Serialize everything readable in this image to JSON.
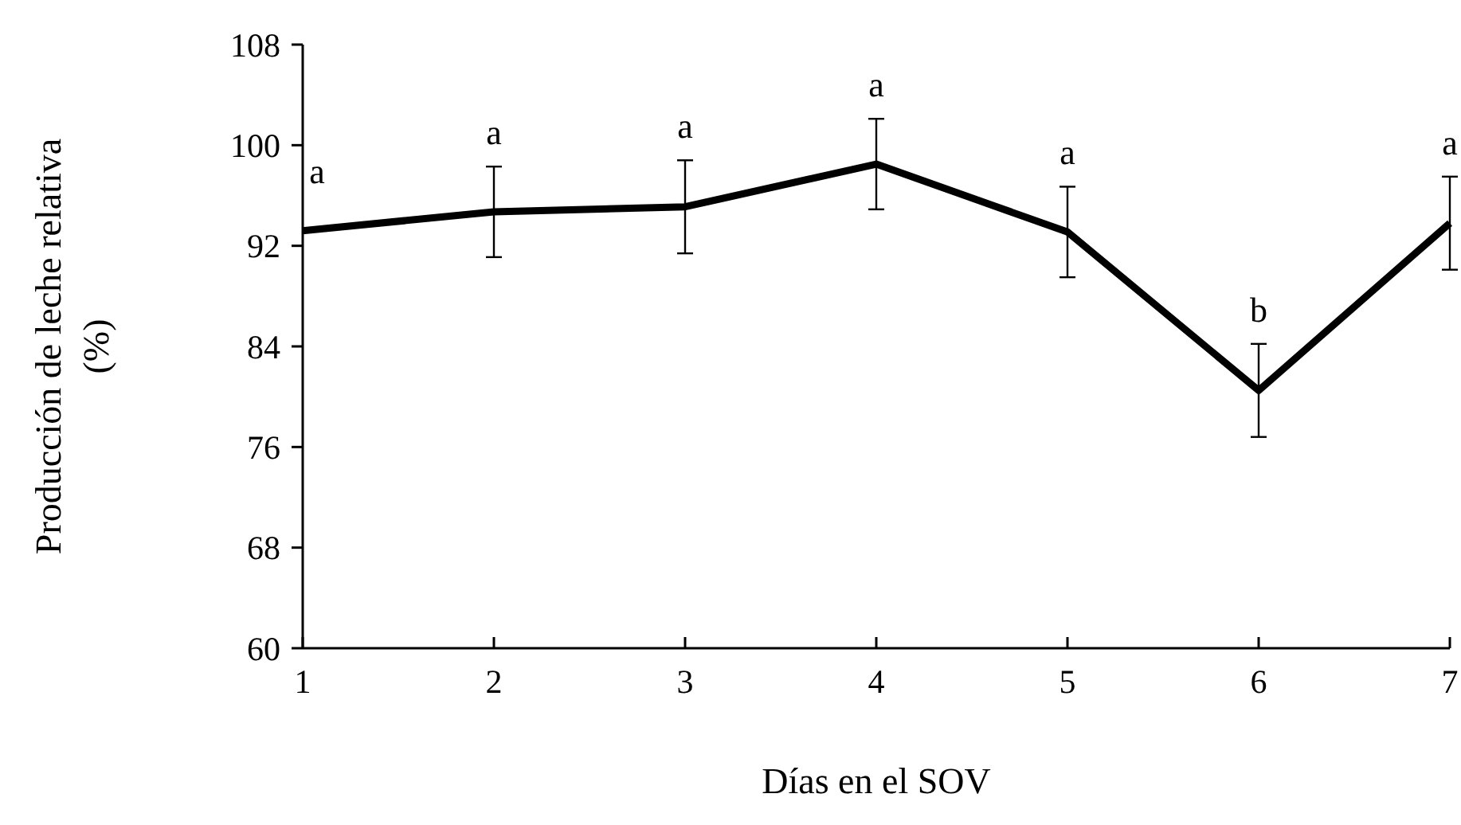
{
  "chart_data": {
    "type": "line",
    "xlabel": "Días en el SOV",
    "ylabel": "Producción de leche relativa (%)",
    "x": [
      1,
      2,
      3,
      4,
      5,
      6,
      7
    ],
    "series": [
      {
        "color": "#000000",
        "values": [
          93.2,
          94.7,
          95.1,
          98.5,
          93.1,
          80.5,
          93.8
        ],
        "errors": [
          null,
          3.6,
          3.7,
          3.6,
          3.6,
          3.7,
          3.7
        ]
      }
    ],
    "xlim": [
      1,
      7
    ],
    "xticks": [
      1,
      2,
      3,
      4,
      5,
      6,
      7
    ],
    "ylim": [
      60,
      108
    ],
    "yticks": [
      60,
      68,
      76,
      84,
      92,
      100,
      108
    ],
    "marker": "none",
    "line_style": "solid",
    "grid": false,
    "annotations": [
      {
        "text": "a",
        "x": 1,
        "y": 93.2
      },
      {
        "text": "a",
        "x": 2,
        "y": 94.7
      },
      {
        "text": "a",
        "x": 3,
        "y": 95.1
      },
      {
        "text": "a",
        "x": 4,
        "y": 98.5
      },
      {
        "text": "a",
        "x": 5,
        "y": 93.1
      },
      {
        "text": "b",
        "x": 6,
        "y": 80.5
      },
      {
        "text": "a",
        "x": 7,
        "y": 93.8
      }
    ]
  }
}
